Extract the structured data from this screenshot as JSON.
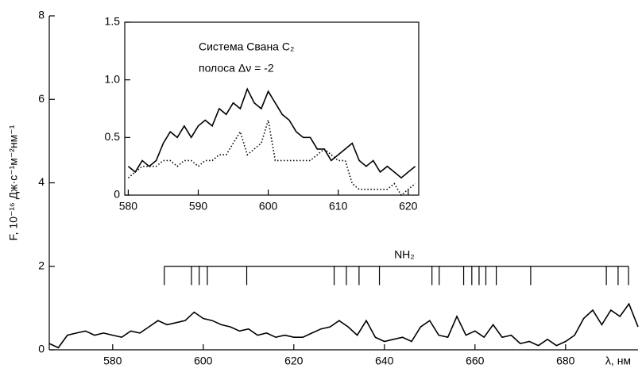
{
  "chart_data": [
    {
      "type": "line",
      "ylabel": "F, 10⁻¹⁶ Дж·с⁻¹м⁻²нм⁻¹",
      "xlabel": "λ, нм",
      "xlim": [
        566,
        696
      ],
      "xticks": [
        580,
        600,
        620,
        640,
        660,
        680
      ],
      "ylim": [
        0,
        8
      ],
      "yticks": [
        0,
        2,
        4,
        6,
        8
      ],
      "x": [
        566,
        568,
        570,
        572,
        574,
        576,
        578,
        580,
        582,
        584,
        586,
        588,
        590,
        592,
        594,
        596,
        598,
        600,
        602,
        604,
        606,
        608,
        610,
        612,
        614,
        616,
        618,
        620,
        622,
        624,
        626,
        628,
        630,
        632,
        634,
        636,
        638,
        640,
        642,
        644,
        646,
        648,
        650,
        652,
        654,
        656,
        658,
        660,
        662,
        664,
        666,
        668,
        670,
        672,
        674,
        676,
        678,
        680,
        682,
        684,
        686,
        688,
        690,
        692,
        694,
        696
      ],
      "series": [
        {
          "color": "#000000",
          "dash": "solid",
          "values": [
            0.15,
            0.05,
            0.35,
            0.4,
            0.45,
            0.35,
            0.4,
            0.35,
            0.3,
            0.45,
            0.4,
            0.55,
            0.7,
            0.6,
            0.65,
            0.7,
            0.9,
            0.75,
            0.7,
            0.6,
            0.55,
            0.45,
            0.5,
            0.35,
            0.4,
            0.3,
            0.35,
            0.3,
            0.3,
            0.4,
            0.5,
            0.55,
            0.7,
            0.55,
            0.35,
            0.7,
            0.3,
            0.2,
            0.25,
            0.3,
            0.2,
            0.55,
            0.7,
            0.35,
            0.3,
            0.8,
            0.35,
            0.45,
            0.3,
            0.6,
            0.3,
            0.35,
            0.15,
            0.2,
            0.1,
            0.25,
            0.1,
            0.2,
            0.35,
            0.75,
            0.95,
            0.6,
            0.95,
            0.8,
            1.1,
            0.55
          ]
        }
      ],
      "markers": {
        "label": "NH₂",
        "level": 2,
        "bottom": 1.55,
        "x": [
          591.4,
          597.4,
          599.1,
          600.9,
          609.6,
          628.9,
          631.6,
          634.4,
          638.9,
          650.5,
          652.1,
          657.5,
          659.3,
          660.9,
          662.4,
          664.7,
          672.3,
          689.0,
          691.6,
          693.9
        ]
      }
    },
    {
      "type": "line",
      "annotations": [
        "Система Свана C₂",
        "полоса  Δν = -2"
      ],
      "xlim": [
        579.5,
        621.5
      ],
      "xticks": [
        580,
        590,
        600,
        610,
        620
      ],
      "ylim": [
        0,
        1.5
      ],
      "yticks": [
        0,
        0.5,
        {
          "value": 1,
          "label": "1.0"
        },
        1.5
      ],
      "x": [
        580,
        581,
        582,
        583,
        584,
        585,
        586,
        587,
        588,
        589,
        590,
        591,
        592,
        593,
        594,
        595,
        596,
        597,
        598,
        599,
        600,
        601,
        602,
        603,
        604,
        605,
        606,
        607,
        608,
        609,
        610,
        611,
        612,
        613,
        614,
        615,
        616,
        617,
        618,
        619,
        620,
        621
      ],
      "series": [
        {
          "color": "#000000",
          "dash": "solid",
          "values": [
            0.25,
            0.2,
            0.3,
            0.25,
            0.3,
            0.45,
            0.55,
            0.5,
            0.6,
            0.5,
            0.6,
            0.65,
            0.6,
            0.75,
            0.7,
            0.8,
            0.75,
            0.92,
            0.8,
            0.75,
            0.9,
            0.8,
            0.7,
            0.65,
            0.55,
            0.5,
            0.5,
            0.4,
            0.4,
            0.3,
            0.35,
            0.4,
            0.45,
            0.3,
            0.25,
            0.3,
            0.2,
            0.25,
            0.2,
            0.15,
            0.2,
            0.25
          ]
        },
        {
          "color": "#000000",
          "dash": "dotted",
          "values": [
            0.15,
            0.2,
            0.25,
            0.25,
            0.25,
            0.3,
            0.3,
            0.25,
            0.3,
            0.3,
            0.25,
            0.3,
            0.3,
            0.35,
            0.35,
            0.45,
            0.55,
            0.35,
            0.4,
            0.45,
            0.65,
            0.3,
            0.3,
            0.3,
            0.3,
            0.3,
            0.3,
            0.35,
            0.4,
            0.35,
            0.3,
            0.3,
            0.1,
            0.05,
            0.05,
            0.05,
            0.05,
            0.05,
            0.1,
            0,
            0.05,
            0.1
          ]
        }
      ]
    }
  ]
}
